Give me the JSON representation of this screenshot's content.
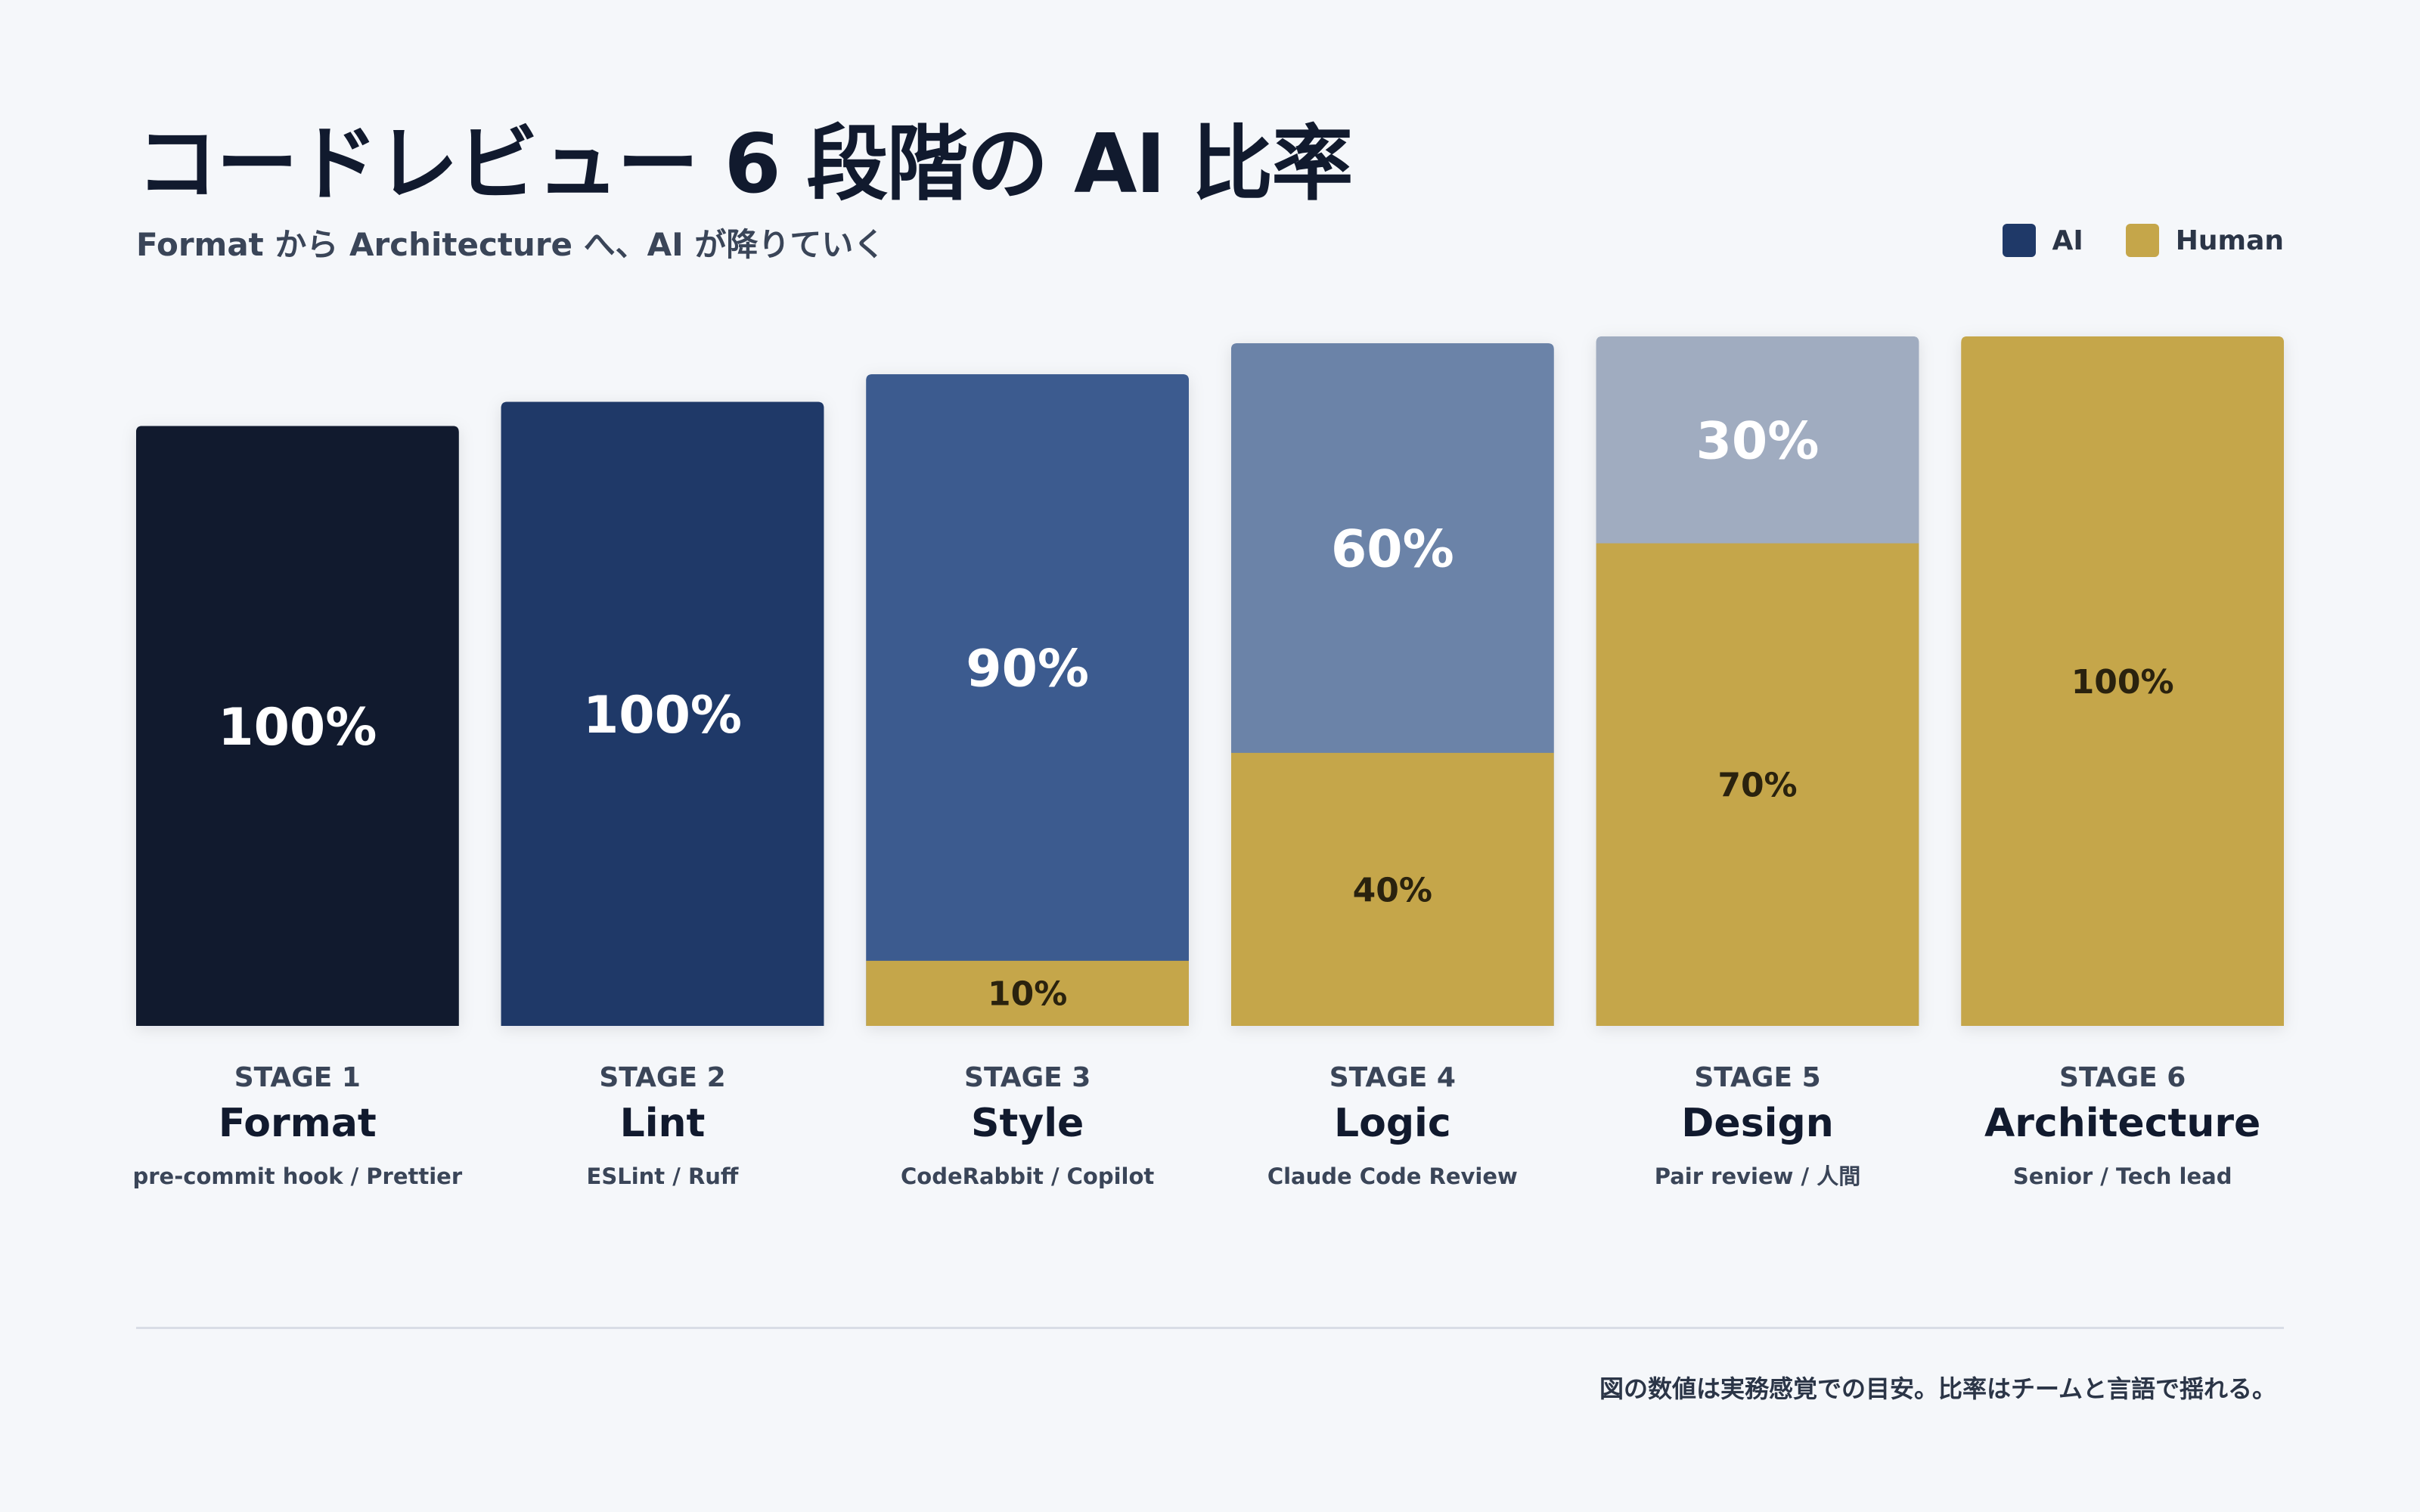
{
  "title": "コードレビュー 6 段階の AI 比率",
  "subtitle": "Format から Architecture へ、AI が降りていく",
  "legend": [
    {
      "label": "AI",
      "color": "#1f3968"
    },
    {
      "label": "Human",
      "color": "#c5a64a"
    }
  ],
  "footnote": "図の数値は実務感覚での目安。比率はチームと言語で揺れる。",
  "chart_data": {
    "type": "bar",
    "stacked": true,
    "stages": [
      {
        "stage": "STAGE 1",
        "name": "Format",
        "tools": "pre-commit hook / Prettier",
        "ai": 100,
        "human": 0,
        "ai_label": "100%",
        "human_label": "",
        "ai_color": "#111a2e",
        "importance": 0.87
      },
      {
        "stage": "STAGE 2",
        "name": "Lint",
        "tools": "ESLint / Ruff",
        "ai": 100,
        "human": 0,
        "ai_label": "100%",
        "human_label": "",
        "ai_color": "#1f3968",
        "importance": 0.905
      },
      {
        "stage": "STAGE 3",
        "name": "Style",
        "tools": "CodeRabbit / Copilot",
        "ai": 90,
        "human": 10,
        "ai_label": "90%",
        "human_label": "10%",
        "ai_color": "#3c5b8f",
        "importance": 0.945
      },
      {
        "stage": "STAGE 4",
        "name": "Logic",
        "tools": "Claude Code Review",
        "ai": 60,
        "human": 40,
        "ai_label": "60%",
        "human_label": "40%",
        "ai_color": "#6b83a8",
        "importance": 0.99
      },
      {
        "stage": "STAGE 5",
        "name": "Design",
        "tools": "Pair review / 人間",
        "ai": 30,
        "human": 70,
        "ai_label": "30%",
        "human_label": "70%",
        "ai_color": "#a0acc0",
        "importance": 1.0
      },
      {
        "stage": "STAGE 6",
        "name": "Architecture",
        "tools": "Senior / Tech lead",
        "ai": 0,
        "human": 100,
        "ai_label": "",
        "human_label": "100%",
        "ai_color": "#a0acc0",
        "importance": 1.0
      }
    ],
    "human_color": "#c5a64a"
  }
}
